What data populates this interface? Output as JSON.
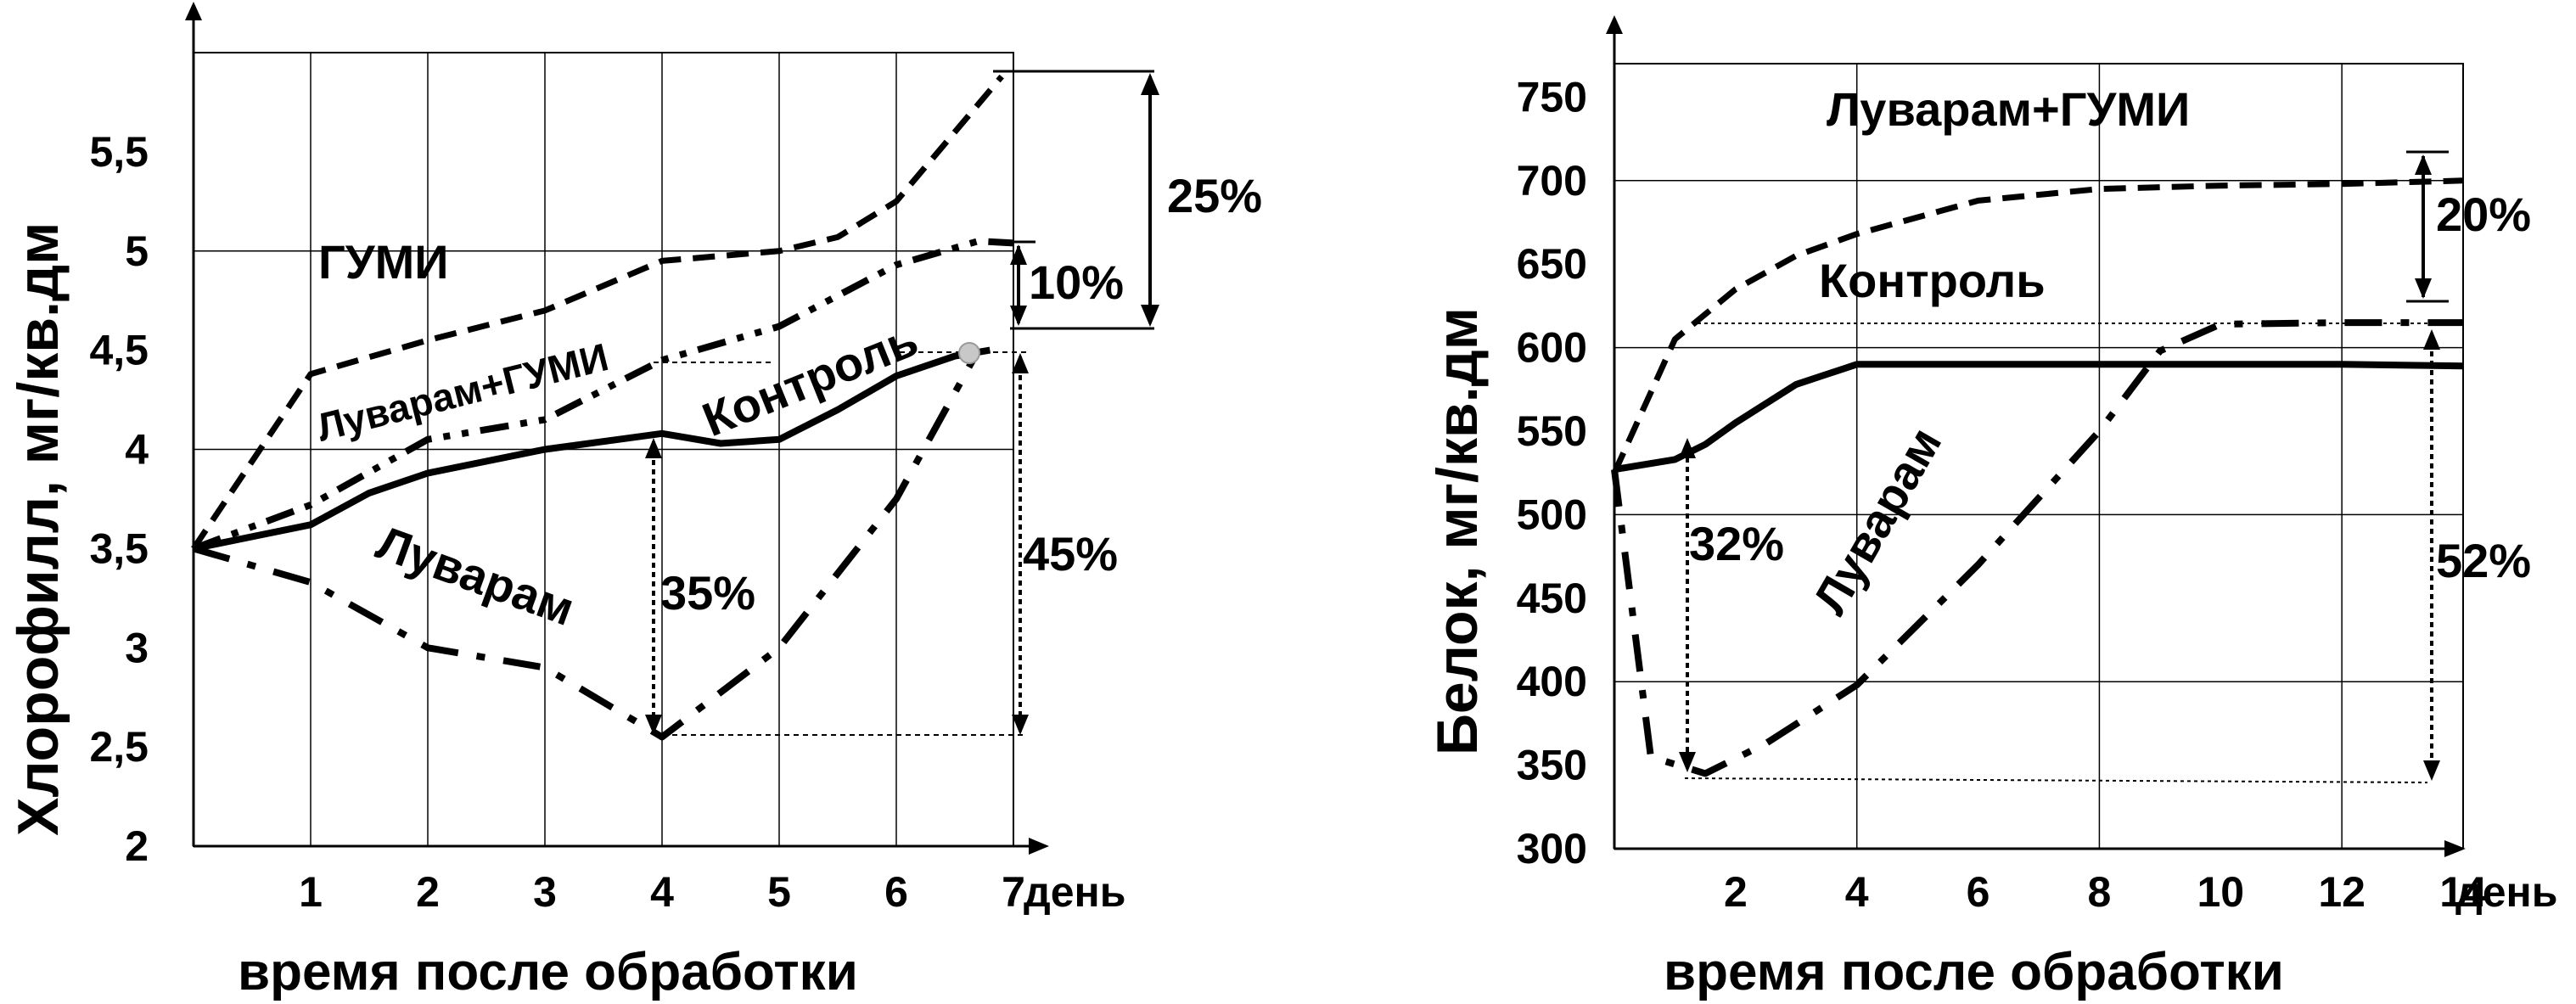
{
  "chart_data": [
    {
      "type": "line",
      "ylabel": "Хлорофилл, мг/кв.дм",
      "xlabel": "время после обработки",
      "x_unit": "день",
      "x_ticks": [
        1,
        2,
        3,
        4,
        5,
        6,
        7
      ],
      "y_ticks": [
        "2",
        "2,5",
        "3",
        "3,5",
        "4",
        "4,5",
        "5",
        "5,5"
      ],
      "xlim": [
        0,
        7
      ],
      "ylim": [
        2,
        6
      ],
      "grid": true,
      "series": [
        {
          "name": "ГУМИ",
          "style": "dashed",
          "x": [
            0,
            1,
            2,
            3,
            4,
            5,
            5.5,
            6,
            6.5,
            6.9
          ],
          "y": [
            3.5,
            4.38,
            4.55,
            4.7,
            4.95,
            5.0,
            5.07,
            5.25,
            5.6,
            5.88
          ]
        },
        {
          "name": "Луварам+ГУМИ",
          "style": "dash-dot-dot",
          "x": [
            0,
            1,
            2,
            3,
            4,
            5,
            6,
            6.7,
            7
          ],
          "y": [
            3.5,
            3.72,
            4.05,
            4.15,
            4.45,
            4.62,
            4.93,
            5.05,
            5.04
          ]
        },
        {
          "name": "Контроль",
          "style": "solid",
          "x": [
            0,
            1,
            1.5,
            2,
            3,
            4,
            4.5,
            5,
            5.5,
            6,
            6.5,
            6.8
          ],
          "y": [
            3.5,
            3.62,
            3.78,
            3.88,
            4.0,
            4.08,
            4.03,
            4.05,
            4.2,
            4.37,
            4.47,
            4.5
          ]
        },
        {
          "name": "Луварам",
          "style": "dash-dot",
          "x": [
            0,
            1,
            2,
            3,
            4,
            5,
            6,
            6.7
          ],
          "y": [
            3.5,
            3.33,
            3.0,
            2.9,
            2.55,
            3.0,
            3.75,
            4.5
          ]
        }
      ],
      "annotations": [
        "25%",
        "10%",
        "35%",
        "45%"
      ]
    },
    {
      "type": "line",
      "ylabel": "Белок, мг/кв.дм",
      "xlabel": "время после обработки",
      "x_unit": "день",
      "x_ticks": [
        2,
        4,
        6,
        8,
        10,
        12,
        14
      ],
      "y_ticks": [
        "300",
        "350",
        "400",
        "450",
        "500",
        "550",
        "600",
        "650",
        "700",
        "750"
      ],
      "xlim": [
        0,
        14
      ],
      "ylim": [
        300,
        770
      ],
      "grid": true,
      "series": [
        {
          "name": "Луварам+ГУМИ",
          "style": "dashed",
          "x": [
            0,
            1,
            2,
            3,
            4,
            6,
            8,
            10,
            12,
            14
          ],
          "y": [
            525,
            605,
            635,
            655,
            668,
            688,
            695,
            697,
            698,
            700
          ]
        },
        {
          "name": "Контроль",
          "style": "solid",
          "x": [
            0,
            1,
            1.5,
            2,
            3,
            4,
            6,
            8,
            10,
            12,
            14
          ],
          "y": [
            527,
            533,
            542,
            555,
            578,
            590,
            590,
            590,
            590,
            590,
            589
          ]
        },
        {
          "name": "Луварам",
          "style": "dash-dot",
          "x": [
            0,
            0.6,
            1.5,
            2.5,
            4,
            6,
            8,
            9,
            10,
            12,
            14
          ],
          "y": [
            527,
            355,
            345,
            363,
            398,
            470,
            550,
            598,
            614,
            615,
            615
          ]
        }
      ],
      "annotations": [
        "20%",
        "32%",
        "52%"
      ]
    }
  ]
}
